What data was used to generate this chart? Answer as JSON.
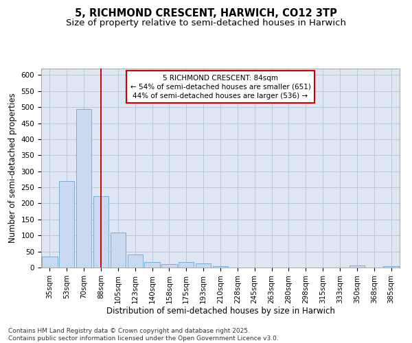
{
  "title": "5, RICHMOND CRESCENT, HARWICH, CO12 3TP",
  "subtitle": "Size of property relative to semi-detached houses in Harwich",
  "xlabel": "Distribution of semi-detached houses by size in Harwich",
  "ylabel": "Number of semi-detached properties",
  "categories": [
    "35sqm",
    "53sqm",
    "70sqm",
    "88sqm",
    "105sqm",
    "123sqm",
    "140sqm",
    "158sqm",
    "175sqm",
    "193sqm",
    "210sqm",
    "228sqm",
    "245sqm",
    "263sqm",
    "280sqm",
    "298sqm",
    "315sqm",
    "333sqm",
    "350sqm",
    "368sqm",
    "385sqm"
  ],
  "values": [
    35,
    270,
    493,
    222,
    109,
    40,
    17,
    10,
    17,
    13,
    5,
    1,
    0,
    0,
    0,
    0,
    0,
    0,
    7,
    0,
    5
  ],
  "bar_color": "#c8d9f0",
  "bar_edge_color": "#7aadd4",
  "vline_x": 3,
  "vline_color": "#cc0000",
  "annotation_text": "5 RICHMOND CRESCENT: 84sqm\n← 54% of semi-detached houses are smaller (651)\n44% of semi-detached houses are larger (536) →",
  "annotation_box_color": "#cc0000",
  "annotation_text_color": "#000000",
  "ylim": [
    0,
    620
  ],
  "yticks": [
    0,
    50,
    100,
    150,
    200,
    250,
    300,
    350,
    400,
    450,
    500,
    550,
    600
  ],
  "grid_color": "#b8c8dc",
  "bg_color": "#dde6f2",
  "footer_text": "Contains HM Land Registry data © Crown copyright and database right 2025.\nContains public sector information licensed under the Open Government Licence v3.0.",
  "title_fontsize": 10.5,
  "subtitle_fontsize": 9.5,
  "axis_label_fontsize": 8.5,
  "tick_fontsize": 7.5,
  "annotation_fontsize": 7.5,
  "footer_fontsize": 6.5
}
